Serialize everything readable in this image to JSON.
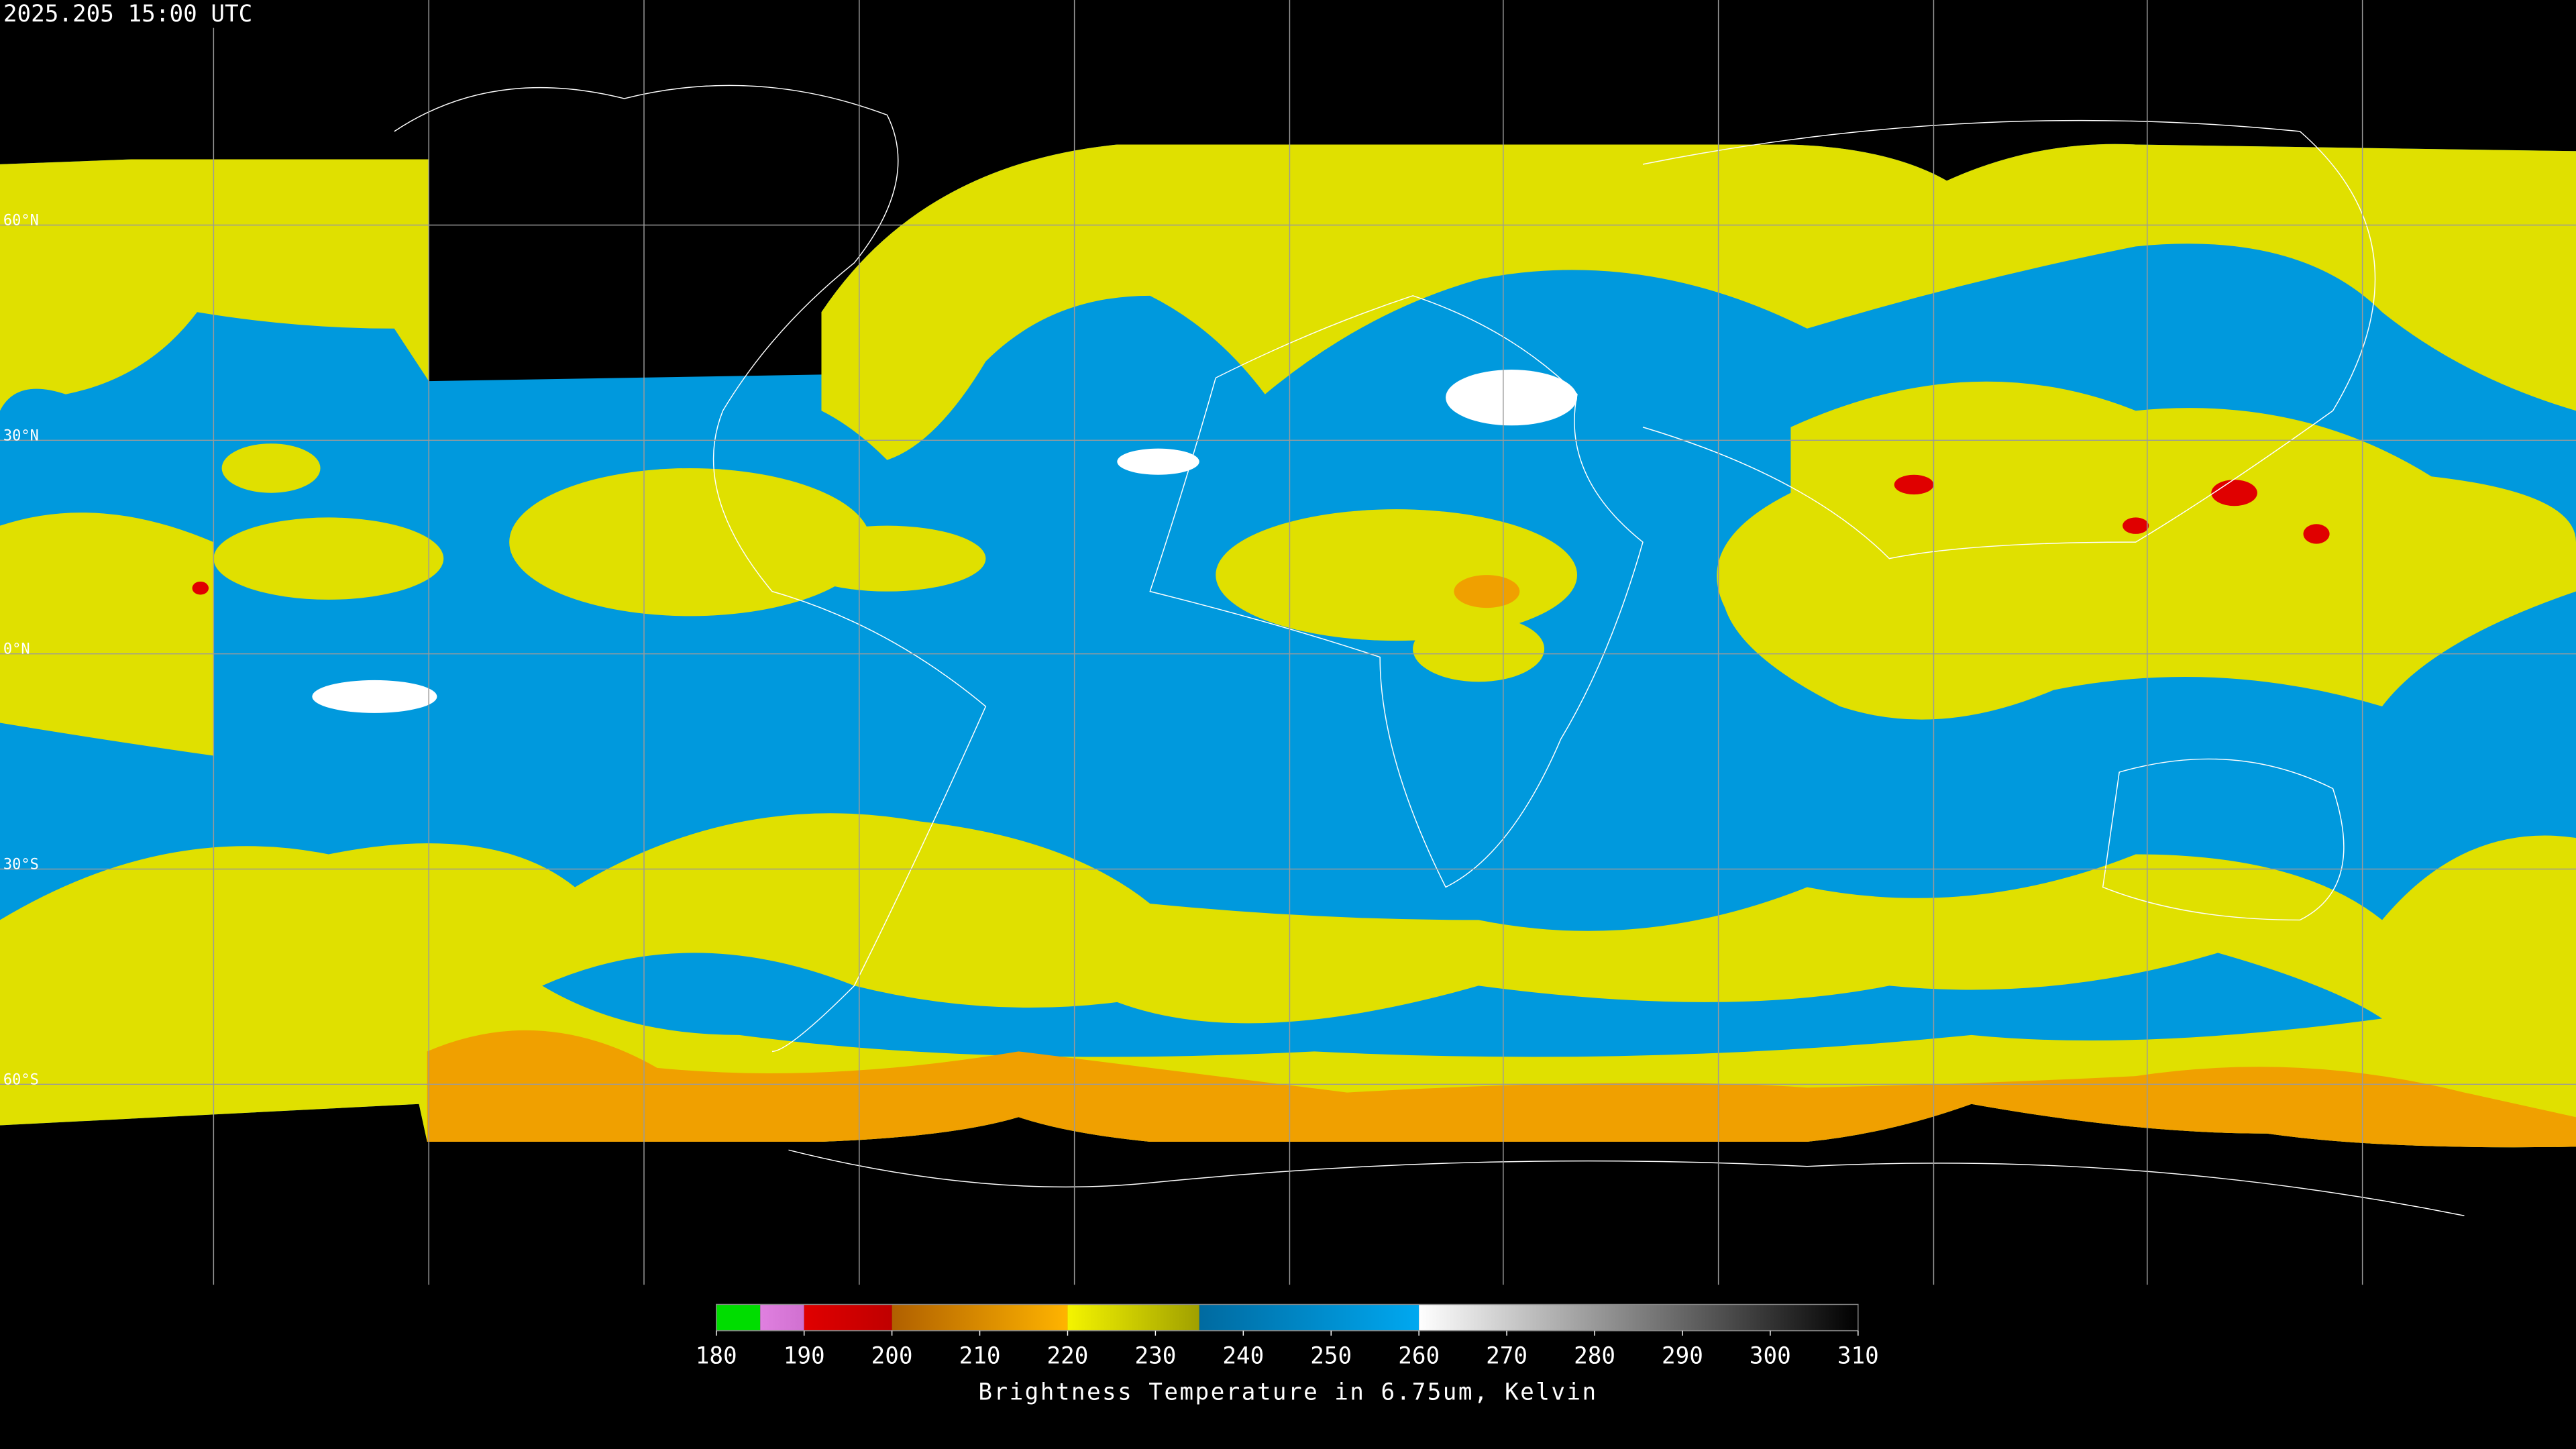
{
  "header": {
    "title": "2025.205 15:00 UTC"
  },
  "lat_labels": [
    "60°N",
    "30°N",
    "0°N",
    "30°S",
    "60°S"
  ],
  "colorbar": {
    "range": [
      180,
      310
    ],
    "ticks": [
      180,
      190,
      200,
      210,
      220,
      230,
      240,
      250,
      260,
      270,
      280,
      290,
      300,
      310
    ],
    "segments": [
      {
        "from": 180,
        "to": 185,
        "color_start": "#00dd00",
        "color_end": "#00dd00"
      },
      {
        "from": 185,
        "to": 190,
        "color_start": "#e080e0",
        "color_end": "#d070d0"
      },
      {
        "from": 190,
        "to": 200,
        "color_start": "#e00000",
        "color_end": "#c00000"
      },
      {
        "from": 200,
        "to": 220,
        "color_start": "#b06000",
        "color_end": "#ffb400"
      },
      {
        "from": 220,
        "to": 235,
        "color_start": "#f4f400",
        "color_end": "#a0a000"
      },
      {
        "from": 235,
        "to": 260,
        "color_start": "#006aa0",
        "color_end": "#00a8f0"
      },
      {
        "from": 260,
        "to": 310,
        "color_start": "#ffffff",
        "color_end": "#000000"
      }
    ],
    "label": "Brightness Temperature in 6.75um, Kelvin"
  }
}
